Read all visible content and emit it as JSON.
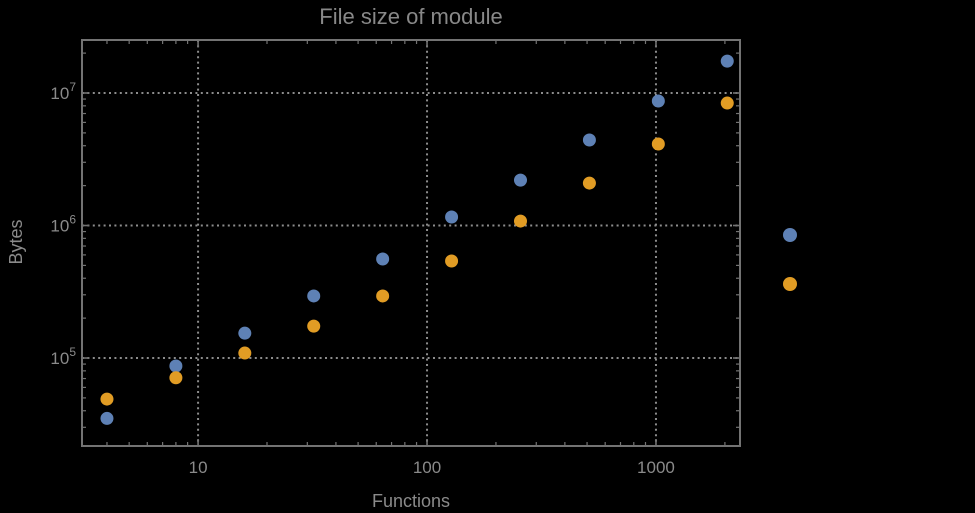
{
  "chart_data": {
    "type": "scatter",
    "title": "File size of module",
    "xlabel": "Functions",
    "ylabel": "Bytes",
    "x_scale": "log10",
    "y_scale": "log10",
    "x_range_log10": [
      0.493,
      3.367
    ],
    "y_range_log10": [
      4.336,
      7.4
    ],
    "grid": {
      "style": "dotted",
      "on": "major-ticks-only"
    },
    "x": [
      4,
      8,
      16,
      32,
      64,
      128,
      256,
      512,
      1024,
      2048
    ],
    "series": [
      {
        "name": "series-1",
        "color": "#5e81b5",
        "values": [
          35000,
          87000,
          154000,
          294000,
          559000,
          1160000,
          2200000,
          4420000,
          8700000,
          17400000
        ]
      },
      {
        "name": "series-2",
        "color": "#e19c24",
        "values": [
          49000,
          71000,
          109000,
          174000,
          294000,
          540000,
          1080000,
          2090000,
          4120000,
          8400000
        ]
      }
    ],
    "x_ticks": {
      "majors": [
        10,
        100,
        1000
      ],
      "labels": [
        "10",
        "100",
        "1000"
      ]
    },
    "y_ticks": {
      "majors": [
        100000,
        1000000,
        10000000
      ],
      "labels": [
        {
          "mantissa": "10",
          "exponent": "5"
        },
        {
          "mantissa": "10",
          "exponent": "6"
        },
        {
          "mantissa": "10",
          "exponent": "7"
        }
      ]
    },
    "legend": {
      "position": "outside-right",
      "markers": [
        {
          "series": "series-1",
          "color": "#5e81b5",
          "label": ""
        },
        {
          "series": "series-2",
          "color": "#e19c24",
          "label": ""
        }
      ]
    }
  },
  "style": {
    "background": "#000000",
    "frame_color": "#737373",
    "grid_color": "#8c8c8c",
    "tick_label_color": "#8a8a8a",
    "axis_label_color": "#8a8a8a",
    "title_color": "#888888"
  }
}
